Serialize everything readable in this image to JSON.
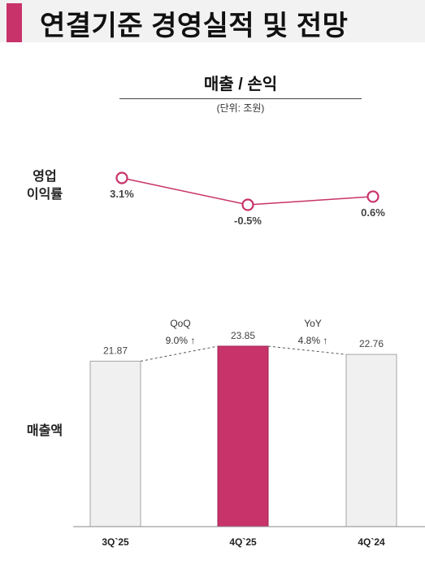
{
  "header": {
    "title": "연결기준 경영실적 및 전망"
  },
  "section": {
    "title": "매출 / 손익",
    "unit": "(단위: 조원)"
  },
  "row_labels": {
    "margin": [
      "영업",
      "이익률"
    ],
    "revenue": "매출액"
  },
  "colors": {
    "accent": "#c8336a",
    "bar_light": "#f0f0f0",
    "bar_border": "#a6a6a6"
  },
  "chart_data": [
    {
      "type": "line",
      "x": [
        "3Q`25",
        "4Q`25",
        "4Q`24"
      ],
      "series": [
        {
          "values": [
            3.1,
            -0.5,
            0.6
          ],
          "labels": [
            "3.1%",
            "-0.5%",
            "0.6%"
          ]
        }
      ],
      "ylabel": "영업 이익률"
    },
    {
      "type": "bar",
      "categories": [
        "3Q`25",
        "4Q`25",
        "4Q`24"
      ],
      "values": [
        21.87,
        23.85,
        22.76
      ],
      "value_labels": [
        "21.87",
        "23.85",
        "22.76"
      ],
      "highlight_index": 1,
      "ylabel": "매출액",
      "annotations": [
        {
          "title": "QoQ",
          "text": "9.0% ↑"
        },
        {
          "title": "YoY",
          "text": "4.8% ↑"
        }
      ]
    }
  ]
}
